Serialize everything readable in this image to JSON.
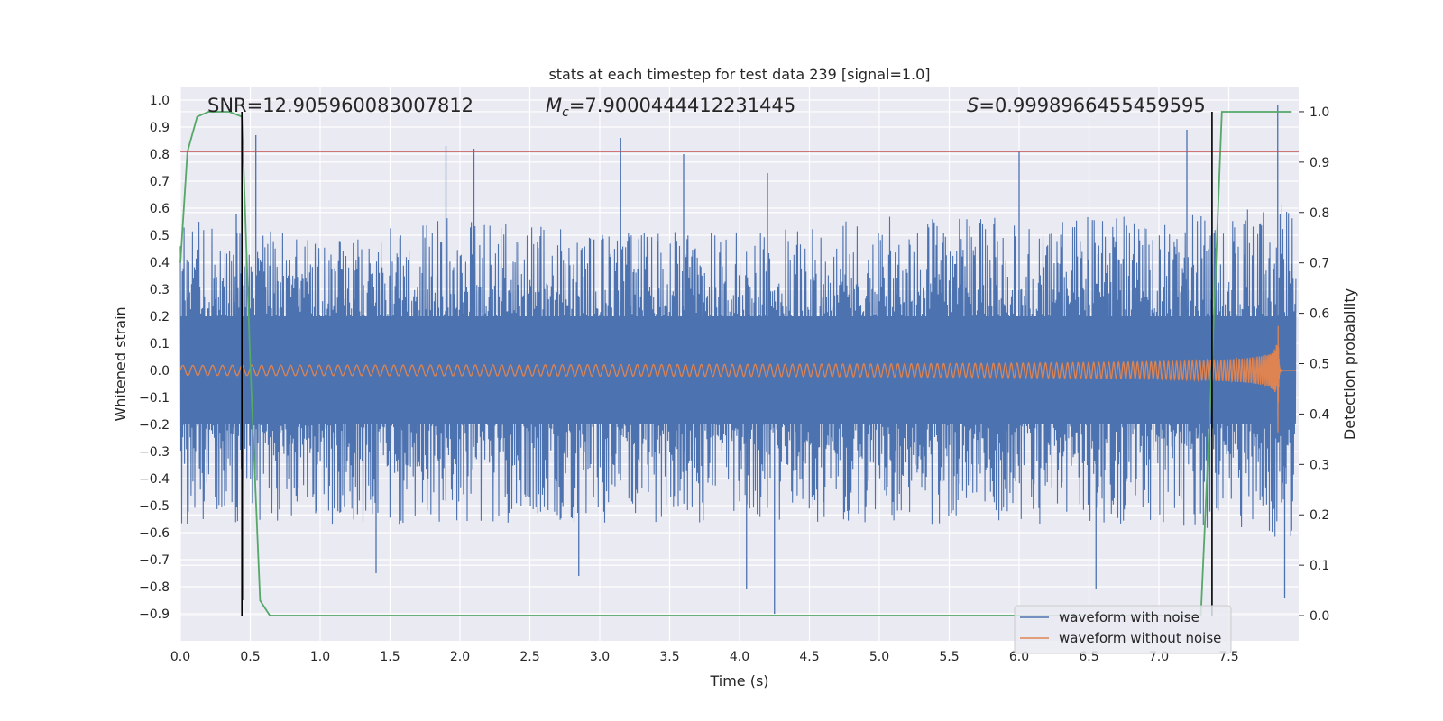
{
  "chart_data": {
    "type": "line",
    "title": "stats at each timestep for test data 239 [signal=1.0]",
    "xlabel": "Time (s)",
    "ylabel": "Whitened strain",
    "y2label": "Detection probability",
    "xlim": [
      0.0,
      8.0
    ],
    "ylim": [
      -1.0,
      1.05
    ],
    "y2lim": [
      -0.05,
      1.05
    ],
    "xticks": [
      "0.0",
      "0.5",
      "1.0",
      "1.5",
      "2.0",
      "2.5",
      "3.0",
      "3.5",
      "4.0",
      "4.5",
      "5.0",
      "5.5",
      "6.0",
      "6.5",
      "7.0",
      "7.5"
    ],
    "yticks": [
      "1.0",
      "0.9",
      "0.8",
      "0.7",
      "0.6",
      "0.5",
      "0.4",
      "0.3",
      "0.2",
      "0.1",
      "0.0",
      "−0.1",
      "−0.2",
      "−0.3",
      "−0.4",
      "−0.5",
      "−0.6",
      "−0.7",
      "−0.8",
      "−0.9"
    ],
    "y2ticks": [
      "1.0",
      "0.9",
      "0.8",
      "0.7",
      "0.6",
      "0.5",
      "0.4",
      "0.3",
      "0.2",
      "0.1",
      "0.0"
    ],
    "annotations": {
      "snr": "SNR=12.905960083007812",
      "mc_symbol": "M",
      "mc_sub": "c",
      "mc_value": "=7.9000444412231445",
      "s_symbol": "S",
      "s_value": "=0.9998966455459595"
    },
    "threshold": {
      "value": 0.81,
      "color": "#c44e52"
    },
    "vertical_markers": [
      0.44,
      7.38
    ],
    "series": [
      {
        "name": "waveform with noise",
        "color": "#4c72b0",
        "envelope_pos": [
          [
            0.0,
            0.55
          ],
          [
            0.5,
            0.5
          ],
          [
            1.0,
            0.5
          ],
          [
            2.0,
            0.55
          ],
          [
            3.0,
            0.5
          ],
          [
            4.0,
            0.5
          ],
          [
            5.0,
            0.55
          ],
          [
            6.0,
            0.55
          ],
          [
            7.0,
            0.55
          ],
          [
            7.9,
            0.6
          ]
        ],
        "envelope_neg": [
          [
            0.0,
            -0.55
          ],
          [
            0.5,
            -0.55
          ],
          [
            1.0,
            -0.55
          ],
          [
            2.0,
            -0.55
          ],
          [
            3.0,
            -0.55
          ],
          [
            4.0,
            -0.55
          ],
          [
            5.0,
            -0.55
          ],
          [
            6.0,
            -0.55
          ],
          [
            7.0,
            -0.55
          ],
          [
            7.9,
            -0.6
          ]
        ],
        "spikes": [
          [
            0.4,
            0.58
          ],
          [
            0.45,
            -0.85
          ],
          [
            0.54,
            0.87
          ],
          [
            1.9,
            0.83
          ],
          [
            2.1,
            0.82
          ],
          [
            3.15,
            0.86
          ],
          [
            3.6,
            0.8
          ],
          [
            4.25,
            -0.9
          ],
          [
            4.05,
            -0.81
          ],
          [
            4.2,
            0.73
          ],
          [
            6.0,
            0.81
          ],
          [
            7.2,
            0.89
          ],
          [
            7.85,
            0.98
          ],
          [
            7.9,
            -0.84
          ],
          [
            1.4,
            -0.75
          ],
          [
            2.85,
            -0.76
          ],
          [
            6.55,
            -0.81
          ]
        ]
      },
      {
        "name": "waveform without noise",
        "color": "#dd8452",
        "amp_start": 0.025,
        "amp_peak": 0.32,
        "f_start": 14,
        "merger_time": 7.85,
        "end_time": 8.0
      },
      {
        "name": "detection probability",
        "color": "#55a868",
        "axis": "y2",
        "points": [
          [
            0.0,
            0.7
          ],
          [
            0.05,
            0.92
          ],
          [
            0.12,
            0.99
          ],
          [
            0.2,
            1.0
          ],
          [
            0.35,
            1.0
          ],
          [
            0.44,
            0.99
          ],
          [
            0.5,
            0.5
          ],
          [
            0.57,
            0.03
          ],
          [
            0.64,
            0.0
          ],
          [
            7.2,
            0.0
          ],
          [
            7.3,
            0.0
          ],
          [
            7.38,
            0.5
          ],
          [
            7.45,
            1.0
          ],
          [
            7.95,
            1.0
          ]
        ]
      }
    ],
    "legend": {
      "position": "lower-right",
      "items": [
        {
          "label": "waveform with noise",
          "color": "#4c72b0"
        },
        {
          "label": "waveform without noise",
          "color": "#dd8452"
        }
      ]
    }
  }
}
